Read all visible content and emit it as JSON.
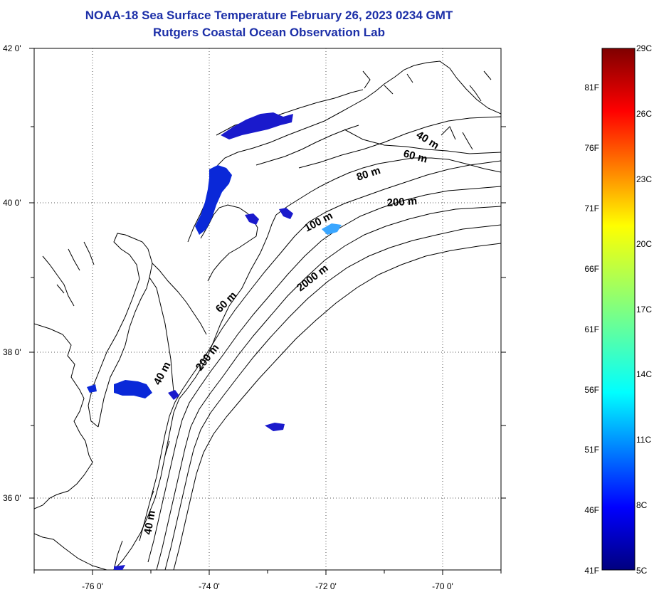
{
  "title": {
    "line1": "NOAA-18 Sea Surface Temperature February 26, 2023 0234 GMT",
    "line2": "Rutgers Coastal Ocean Observation Lab"
  },
  "map": {
    "latitude_labels": [
      "42 0'",
      "40 0'",
      "38 0'",
      "36 0'"
    ],
    "longitude_labels": [
      "-76 0'",
      "-74 0'",
      "-72 0'",
      "-70 0'"
    ],
    "latitude_range": [
      35,
      42
    ],
    "longitude_range": [
      -77,
      -69
    ],
    "grid": "dotted",
    "contour_labels": [
      "40 m",
      "60 m",
      "80 m",
      "200 m",
      "100 m",
      "2000 m",
      "60 m",
      "200 m",
      "40 m",
      "40 m"
    ],
    "land_color": "#ffffff",
    "coastline_color": "#000000",
    "sst_patch_colors": [
      "#1a1acc",
      "#0a28d8",
      "#3aa6ff",
      "#2080f0"
    ]
  },
  "colorbar": {
    "celsius_labels": [
      "29C",
      "26C",
      "23C",
      "20C",
      "17C",
      "14C",
      "11C",
      "8C",
      "5C"
    ],
    "fahrenheit_labels": [
      "81F",
      "76F",
      "71F",
      "66F",
      "61F",
      "56F",
      "51F",
      "46F",
      "41F"
    ],
    "range_c": [
      5,
      29
    ],
    "range_f": [
      41,
      84
    ],
    "colormap": "jet"
  }
}
